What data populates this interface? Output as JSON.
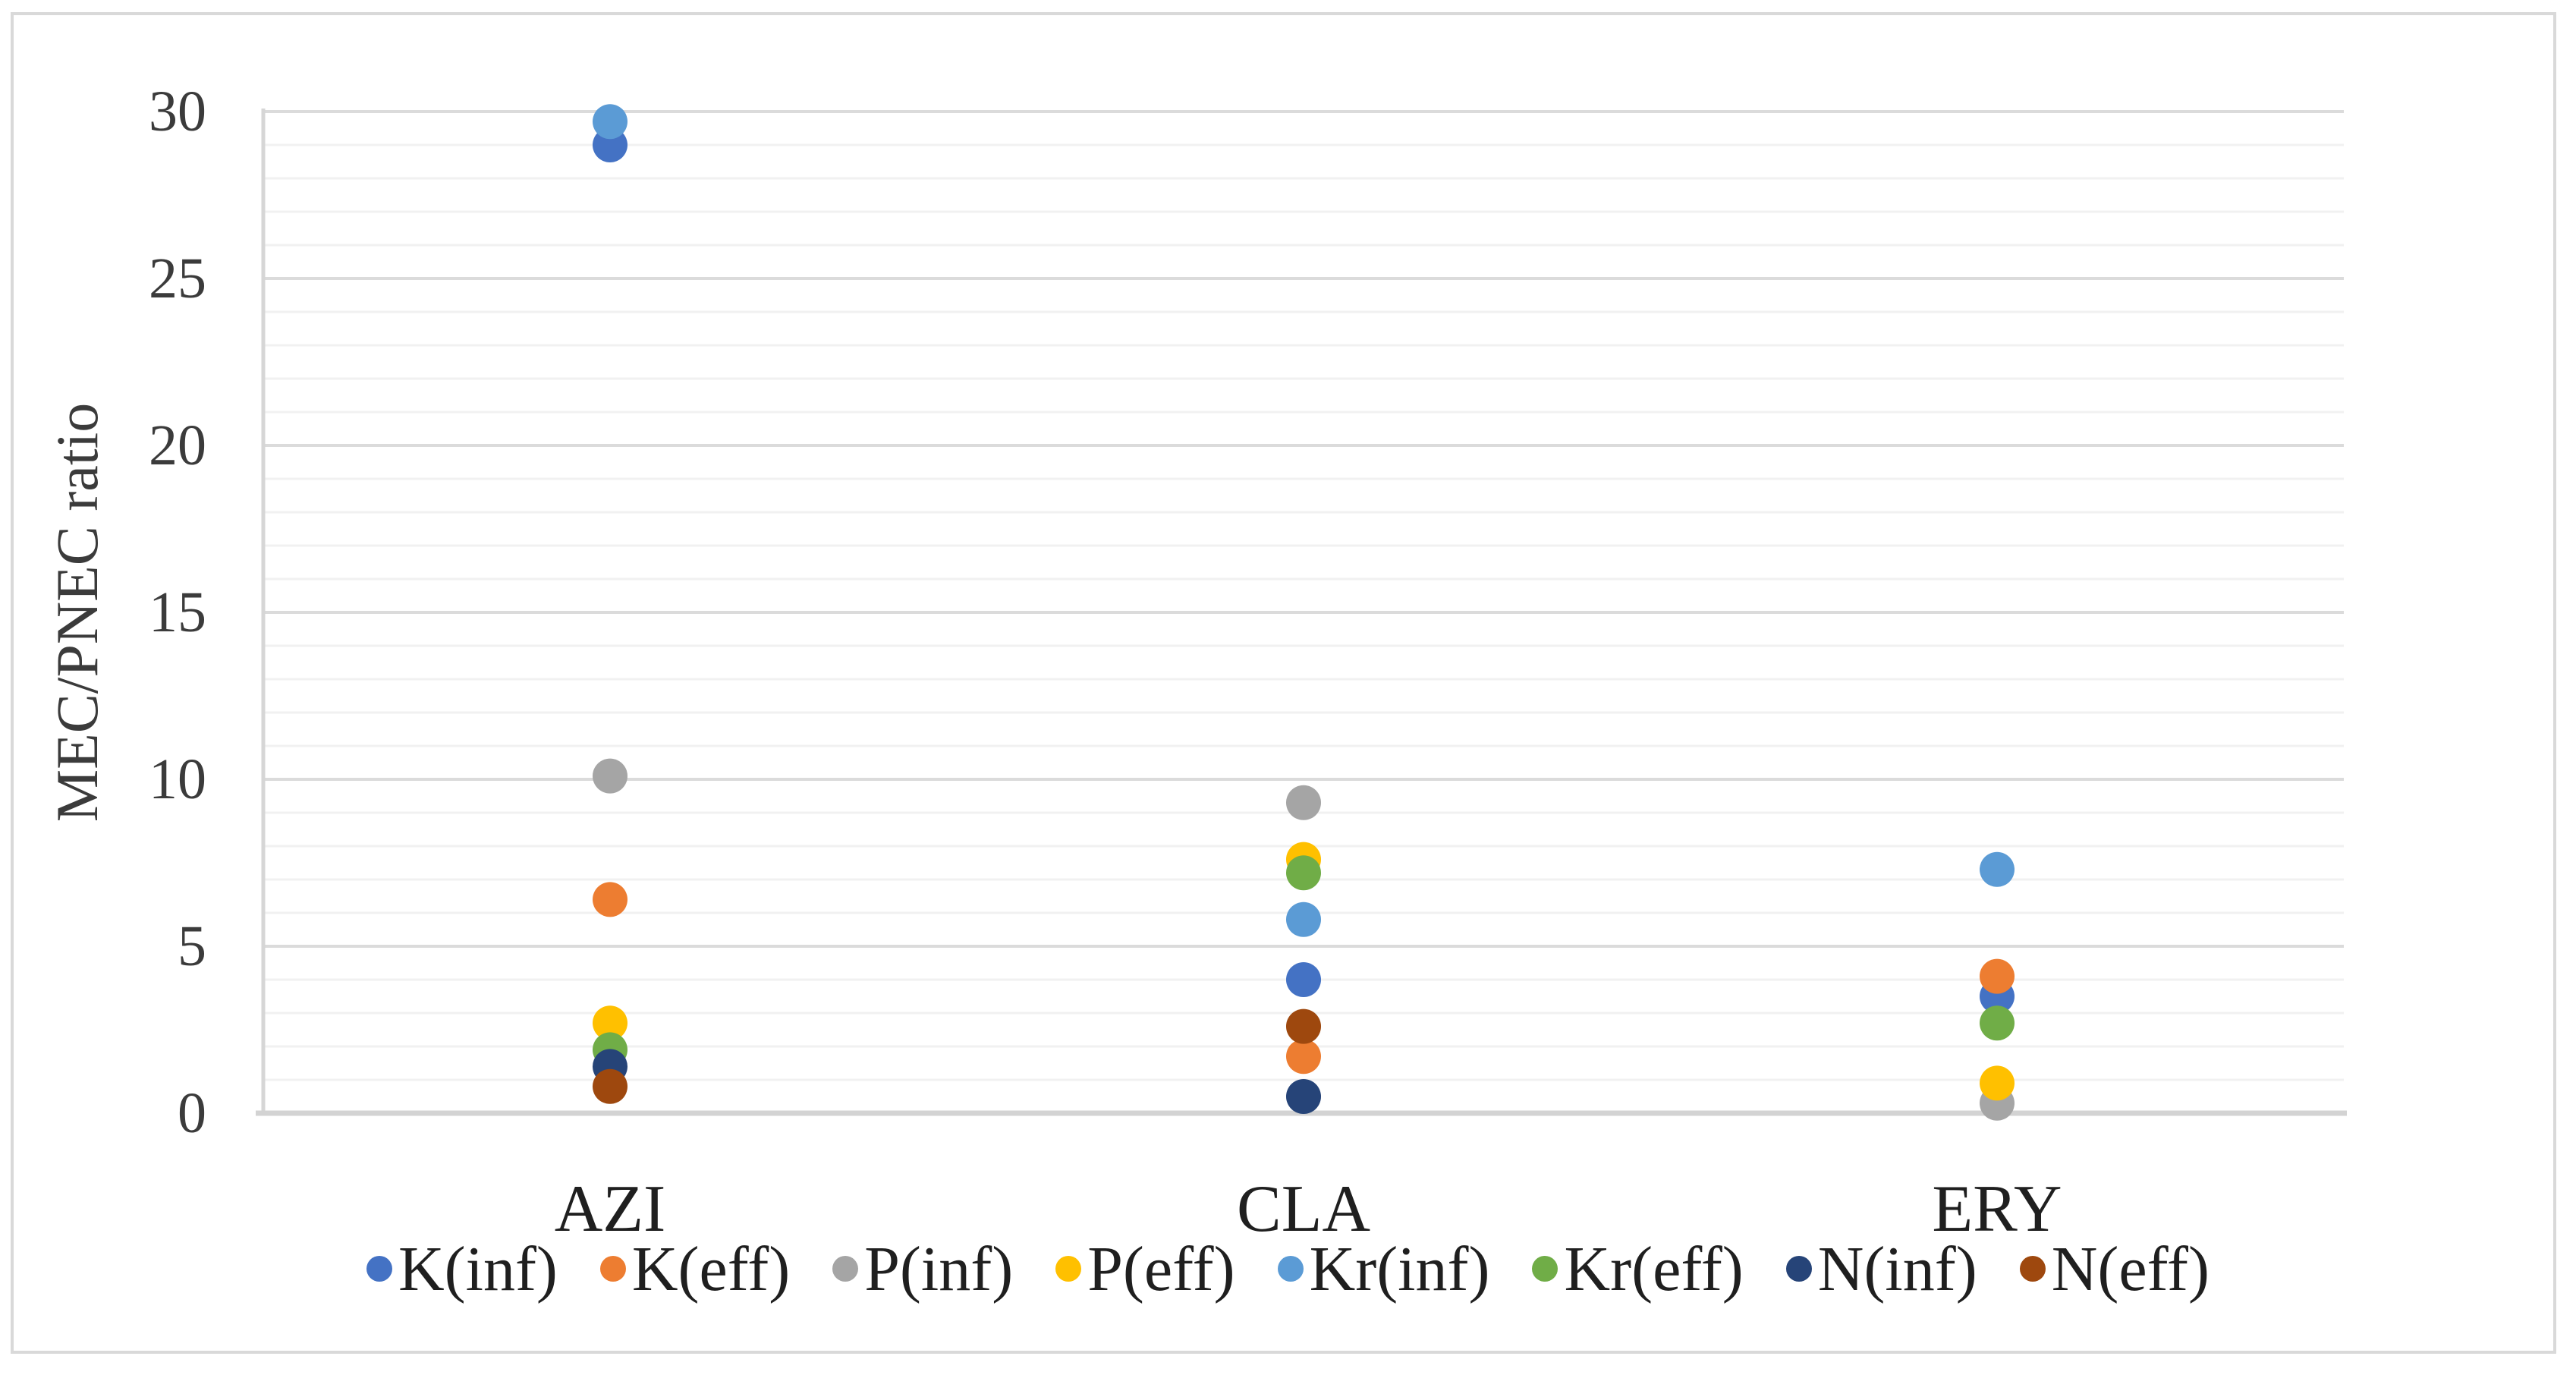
{
  "figure": {
    "background": "#FFFFFF",
    "border_color": "#D9D9D9"
  },
  "chart_data": {
    "type": "scatter",
    "title": "",
    "xlabel": "",
    "ylabel": "MEC/PNEC ratio",
    "categories": [
      "AZI",
      "CLA",
      "ERY"
    ],
    "ylim": [
      0,
      30
    ],
    "yticks": [
      0,
      5,
      10,
      15,
      20,
      25,
      30
    ],
    "grid": {
      "minor_step": 1,
      "major_step": 5,
      "minor_color": "#F1F1F1",
      "major_color": "#DBDBDB",
      "axis_color": "#D3D3D3",
      "yaxis_line_color": "#D6D6D6"
    },
    "legend_position": "bottom",
    "marker": "circle",
    "series": [
      {
        "name": "K(inf)",
        "color": "#4472C4",
        "values": [
          29.0,
          4.0,
          3.5
        ]
      },
      {
        "name": "K(eff)",
        "color": "#ED7D31",
        "values": [
          6.4,
          1.7,
          4.1
        ]
      },
      {
        "name": "P(inf)",
        "color": "#A5A5A5",
        "values": [
          10.1,
          9.3,
          0.3
        ]
      },
      {
        "name": "P(eff)",
        "color": "#FFC000",
        "values": [
          2.7,
          7.6,
          0.9
        ]
      },
      {
        "name": "Kr(inf)",
        "color": "#5B9BD5",
        "values": [
          29.7,
          5.8,
          7.3
        ]
      },
      {
        "name": "Kr(eff)",
        "color": "#70AD47",
        "values": [
          1.9,
          7.2,
          2.7
        ]
      },
      {
        "name": "N(inf)",
        "color": "#264478",
        "values": [
          1.4,
          0.5,
          null
        ]
      },
      {
        "name": "N(eff)",
        "color": "#9E480E",
        "values": [
          0.8,
          2.6,
          null
        ]
      }
    ]
  }
}
